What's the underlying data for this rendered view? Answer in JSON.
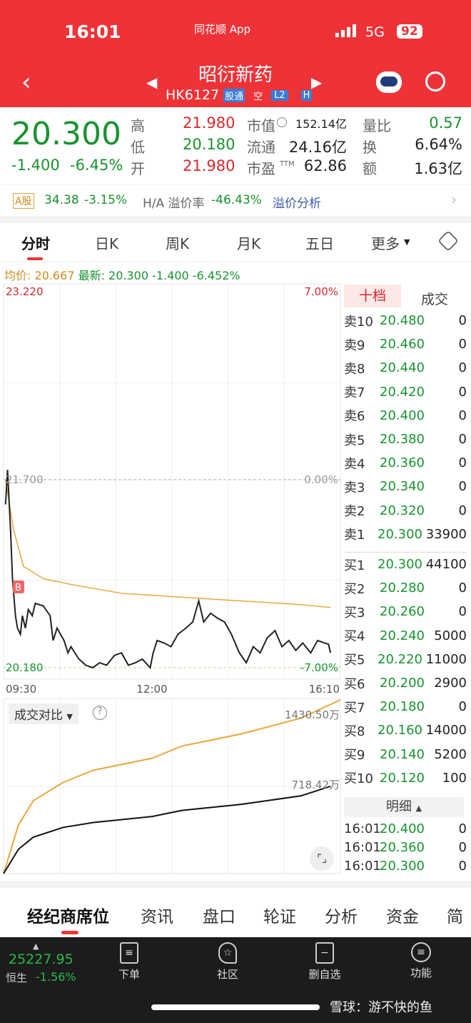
{
  "status": {
    "time": "16:01",
    "app": "同花顺 App",
    "network": "5G",
    "battery": "92"
  },
  "header": {
    "name": "昭衍新药",
    "code": "HK6127",
    "badges": [
      "股通",
      "空",
      "L2",
      "H"
    ]
  },
  "quote": {
    "price": "20.300",
    "change": "-1.400",
    "pct": "-6.45%",
    "rows": [
      {
        "l1": "高",
        "v1": "21.980",
        "l2": "市值",
        "v2": "152.14亿",
        "l3": "量比",
        "v3": "0.57"
      },
      {
        "l1": "低",
        "v1": "20.180",
        "l2": "流通",
        "v2": "24.16亿",
        "l3": "换",
        "v3": "6.64%"
      },
      {
        "l1": "开",
        "v1": "21.980",
        "l2": "市盈",
        "v2": "62.86",
        "l3": "额",
        "v3": "1.63亿"
      }
    ],
    "ttm": "TTM"
  },
  "ashare": {
    "tag": "A股",
    "price": "34.38",
    "pct": "-3.15%",
    "premium_label": "H/A 溢价率",
    "premium": "-46.43%",
    "link": "溢价分析"
  },
  "tabs": [
    "分时",
    "日K",
    "周K",
    "月K",
    "五日",
    "更多"
  ],
  "info": {
    "avg": "均价: 20.667",
    "latest": "最新: 20.300",
    "chg": "-1.400",
    "pct": "-6.452%"
  },
  "orderbook": {
    "tabs": [
      "十档",
      "成交"
    ],
    "asks": [
      [
        "卖10",
        "20.480",
        "0"
      ],
      [
        "卖9",
        "20.460",
        "0"
      ],
      [
        "卖8",
        "20.440",
        "0"
      ],
      [
        "卖7",
        "20.420",
        "0"
      ],
      [
        "卖6",
        "20.400",
        "0"
      ],
      [
        "卖5",
        "20.380",
        "0"
      ],
      [
        "卖4",
        "20.360",
        "0"
      ],
      [
        "卖3",
        "20.340",
        "0"
      ],
      [
        "卖2",
        "20.320",
        "0"
      ],
      [
        "卖1",
        "20.300",
        "33900"
      ]
    ],
    "bids": [
      [
        "买1",
        "20.300",
        "44100"
      ],
      [
        "买2",
        "20.280",
        "0"
      ],
      [
        "买3",
        "20.260",
        "0"
      ],
      [
        "买4",
        "20.240",
        "5000"
      ],
      [
        "买5",
        "20.220",
        "11000"
      ],
      [
        "买6",
        "20.200",
        "2900"
      ],
      [
        "买7",
        "20.180",
        "0"
      ],
      [
        "买8",
        "20.160",
        "14000"
      ],
      [
        "买9",
        "20.140",
        "5200"
      ],
      [
        "买10",
        "20.120",
        "100"
      ]
    ],
    "detail_label": "明细",
    "trades": [
      [
        "16:01",
        "20.400",
        "0"
      ],
      [
        "16:01",
        "20.360",
        "0"
      ],
      [
        "16:01",
        "20.300",
        "0"
      ]
    ]
  },
  "chart_data": [
    {
      "type": "line",
      "ylim": [
        20.18,
        23.22
      ],
      "prev_close": 21.7,
      "ytick_left": [
        "23.220",
        "21.700",
        "20.180"
      ],
      "ytick_right": [
        "7.00%",
        "0.00%",
        "-7.00%"
      ],
      "xticks": [
        "09:30",
        "12:00",
        "16:10"
      ],
      "marker": "B",
      "series": [
        {
          "color": "#222222",
          "points": [
            [
              "09:32",
              21.5
            ],
            [
              "09:34",
              21.78
            ],
            [
              "09:37",
              21.3
            ],
            [
              "09:39",
              20.9
            ],
            [
              "09:42",
              20.6
            ],
            [
              "09:44",
              20.5
            ],
            [
              "09:47",
              20.45
            ],
            [
              "09:49",
              20.6
            ],
            [
              "09:52",
              20.5
            ],
            [
              "09:55",
              20.65
            ],
            [
              "09:59",
              20.6
            ],
            [
              "10:02",
              20.7
            ],
            [
              "10:10",
              20.68
            ],
            [
              "10:17",
              20.6
            ],
            [
              "10:20",
              20.4
            ],
            [
              "10:24",
              20.5
            ],
            [
              "10:31",
              20.4
            ],
            [
              "10:35",
              20.3
            ],
            [
              "10:38",
              20.35
            ],
            [
              "10:46",
              20.25
            ],
            [
              "10:53",
              20.2
            ],
            [
              "11:00",
              20.18
            ],
            [
              "11:07",
              20.22
            ],
            [
              "11:14",
              20.2
            ],
            [
              "11:22",
              20.28
            ],
            [
              "11:29",
              20.3
            ],
            [
              "11:36",
              20.2
            ],
            [
              "11:43",
              20.22
            ],
            [
              "11:50",
              20.25
            ],
            [
              "11:58",
              20.18
            ],
            [
              "13:01",
              20.3
            ],
            [
              "13:05",
              20.4
            ],
            [
              "13:12",
              20.38
            ],
            [
              "13:19",
              20.35
            ],
            [
              "13:26",
              20.45
            ],
            [
              "13:34",
              20.5
            ],
            [
              "13:41",
              20.55
            ],
            [
              "13:47",
              20.72
            ],
            [
              "13:52",
              20.55
            ],
            [
              "13:59",
              20.62
            ],
            [
              "14:06",
              20.58
            ],
            [
              "14:13",
              20.55
            ],
            [
              "14:20",
              20.45
            ],
            [
              "14:28",
              20.3
            ],
            [
              "14:35",
              20.22
            ],
            [
              "14:42",
              20.35
            ],
            [
              "14:49",
              20.3
            ],
            [
              "14:56",
              20.42
            ],
            [
              "15:04",
              20.48
            ],
            [
              "15:11",
              20.35
            ],
            [
              "15:18",
              20.4
            ],
            [
              "15:25",
              20.32
            ],
            [
              "15:32",
              20.38
            ],
            [
              "15:40",
              20.3
            ],
            [
              "15:47",
              20.4
            ],
            [
              "15:54",
              20.38
            ],
            [
              "15:58",
              20.37
            ],
            [
              "16:00",
              20.3
            ]
          ]
        },
        {
          "color": "#e8a83a",
          "points": [
            [
              "09:32",
              21.7
            ],
            [
              "09:40",
              21.3
            ],
            [
              "09:50",
              21.0
            ],
            [
              "10:10",
              20.9
            ],
            [
              "10:40",
              20.85
            ],
            [
              "11:30",
              20.78
            ],
            [
              "13:30",
              20.75
            ],
            [
              "14:30",
              20.72
            ],
            [
              "15:30",
              20.69
            ],
            [
              "16:00",
              20.667
            ]
          ]
        }
      ]
    },
    {
      "type": "line",
      "title": "成交对比",
      "ylim": [
        0,
        1430.5
      ],
      "labels": [
        "1430.50万",
        "718.42万"
      ],
      "series": [
        {
          "color": "#e8a83a",
          "points": [
            [
              "09:30",
              0
            ],
            [
              "09:45",
              400
            ],
            [
              "10:00",
              600
            ],
            [
              "10:30",
              750
            ],
            [
              "11:00",
              850
            ],
            [
              "12:00",
              950
            ],
            [
              "13:30",
              1050
            ],
            [
              "14:30",
              1150
            ],
            [
              "15:30",
              1280
            ],
            [
              "16:10",
              1430.5
            ]
          ]
        },
        {
          "color": "#111111",
          "points": [
            [
              "09:30",
              0
            ],
            [
              "09:45",
              200
            ],
            [
              "10:00",
              300
            ],
            [
              "10:30",
              380
            ],
            [
              "11:00",
              420
            ],
            [
              "12:00",
              470
            ],
            [
              "13:30",
              520
            ],
            [
              "14:30",
              570
            ],
            [
              "15:30",
              640
            ],
            [
              "16:00",
              718.42
            ]
          ]
        }
      ]
    }
  ],
  "bottom_tabs": [
    "经纪商席位",
    "资讯",
    "盘口",
    "轮证",
    "分析",
    "资金",
    "简"
  ],
  "nav": {
    "index_value": "25227.95",
    "index_name": "恒生",
    "index_pct": "-1.56%",
    "items": [
      "下单",
      "社区",
      "删自选",
      "功能"
    ]
  },
  "watermark": "雪球：游不快的鱼",
  "colors": {
    "brand": "#ee3338",
    "up": "#d8262c",
    "down": "#18932f",
    "avg": "#e8a83a"
  }
}
